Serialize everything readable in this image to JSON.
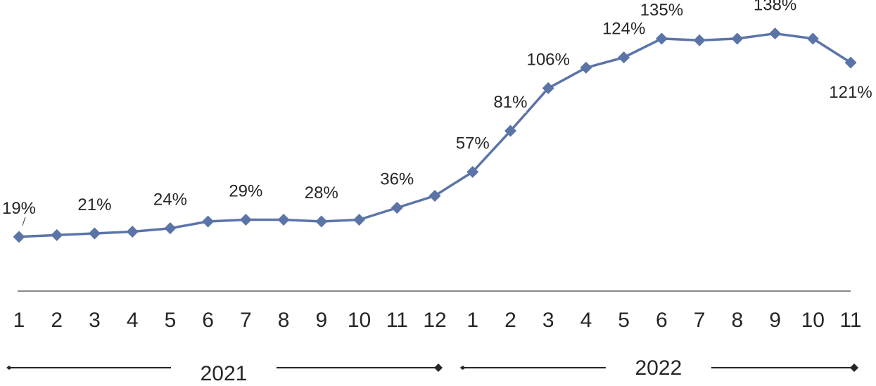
{
  "chart_data": {
    "type": "line",
    "title": "",
    "xlabel": "",
    "ylabel": "",
    "categories": [
      "1",
      "2",
      "3",
      "4",
      "5",
      "6",
      "7",
      "8",
      "9",
      "10",
      "11",
      "12",
      "1",
      "2",
      "3",
      "4",
      "5",
      "6",
      "7",
      "8",
      "9",
      "10",
      "11"
    ],
    "series": [
      {
        "values": [
          19,
          20,
          21,
          22,
          24,
          28,
          29,
          29,
          28,
          29,
          36,
          43,
          57,
          81,
          106,
          118,
          124,
          135,
          134,
          135,
          138,
          135,
          121
        ],
        "labels": [
          "19%",
          "",
          "21%",
          "",
          "24%",
          "",
          "29%",
          "",
          "28%",
          "",
          "36%",
          "",
          "57%",
          "81%",
          "106%",
          "",
          "124%",
          "135%",
          "",
          "",
          "138%",
          "",
          "121%"
        ],
        "color": "#5B74A8"
      }
    ],
    "groups": [
      {
        "label": "2021",
        "start_index": 0,
        "end_index": 11
      },
      {
        "label": "2022",
        "start_index": 12,
        "end_index": 22
      }
    ],
    "ylim": [
      0,
      145
    ],
    "grid": false,
    "legend": "none",
    "unit": "%"
  }
}
